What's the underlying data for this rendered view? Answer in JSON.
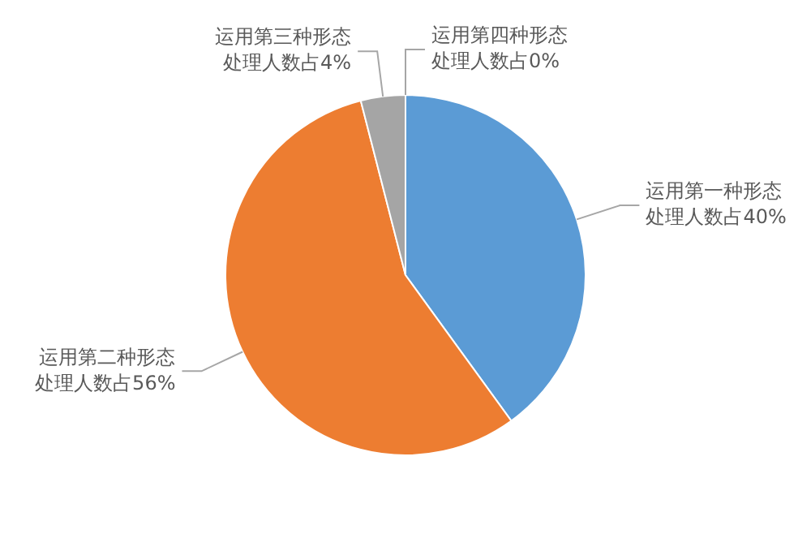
{
  "chart_data": {
    "type": "pie",
    "categories": [
      "运用第一种形态",
      "运用第二种形态",
      "运用第三种形态",
      "运用第四种形态"
    ],
    "values": [
      40,
      56,
      4,
      0
    ],
    "value_labels": [
      "处理人数占40%",
      "处理人数占56%",
      "处理人数占4%",
      "处理人数占0%"
    ],
    "colors": [
      "#5b9bd5",
      "#ed7d31",
      "#a5a5a5",
      "#ffc000"
    ],
    "legend": false
  }
}
